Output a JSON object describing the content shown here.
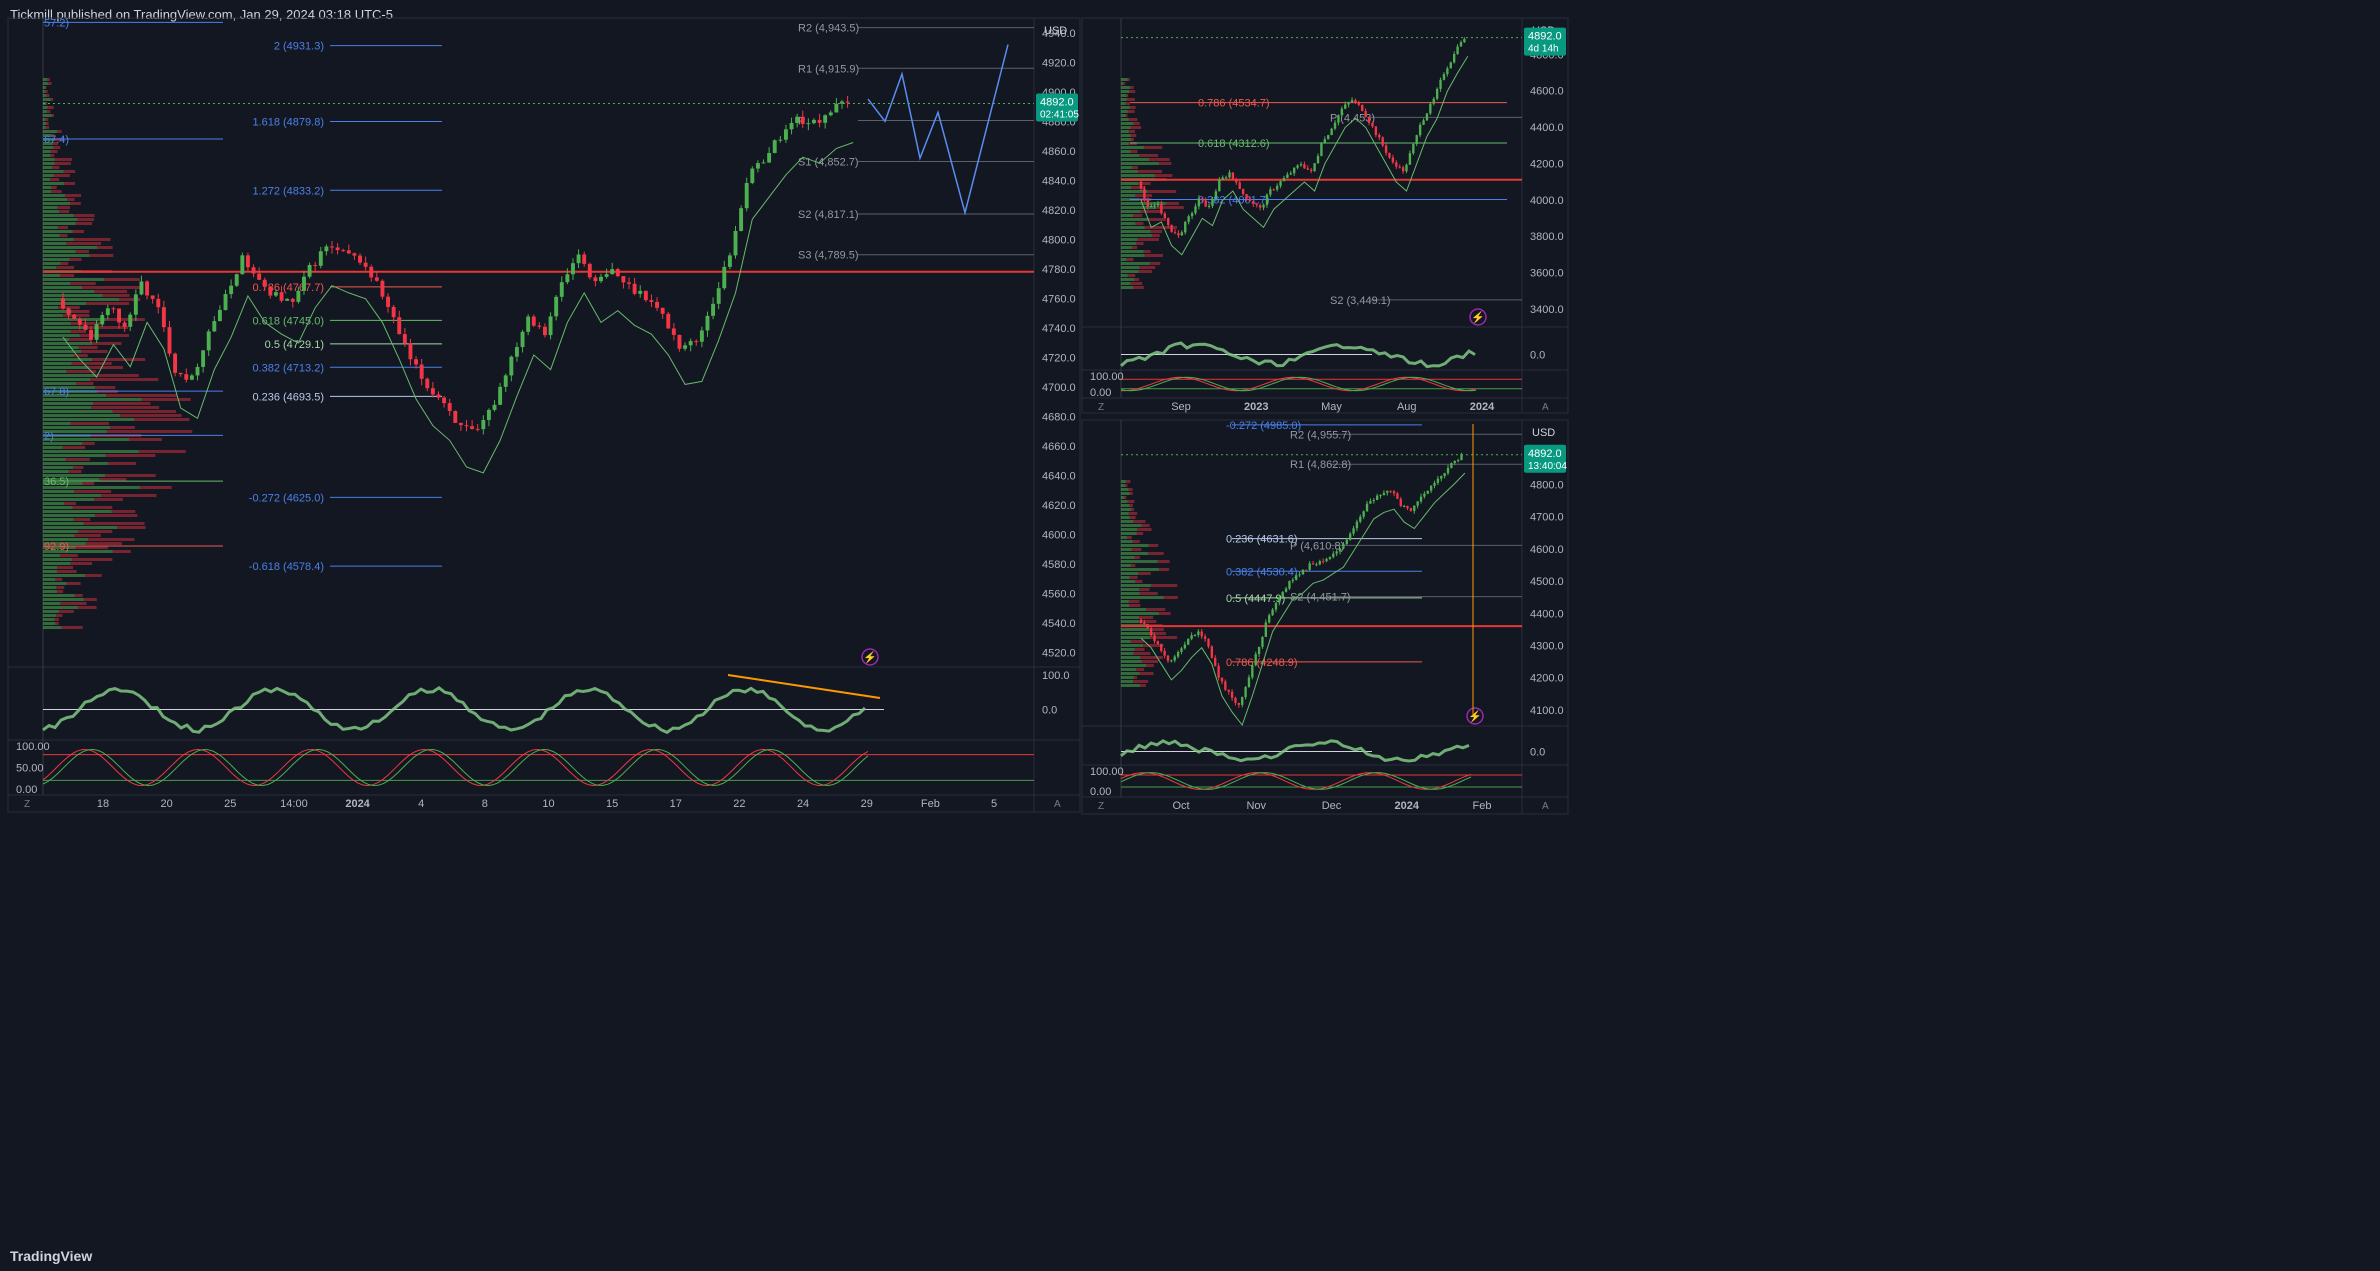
{
  "header": {
    "published": "Tickmill published on TradingView.com, Jan 29, 2024 03:18 UTC-5"
  },
  "footer": {
    "logo": "TradingView"
  },
  "colors": {
    "bg": "#131722",
    "up": "#26a69a",
    "green": "#4caf50",
    "red": "#f23645",
    "blue": "#2962ff",
    "orange": "#ff9800",
    "price_badge": "#089981",
    "purple": "#9c27b0"
  },
  "chart_data": [
    {
      "type": "candlestick",
      "panel": "main",
      "currency": "USD",
      "ylim": [
        4510,
        4950
      ],
      "y_ticks": [
        4520,
        4540,
        4560,
        4580,
        4600,
        4620,
        4640,
        4660,
        4680,
        4700,
        4720,
        4740,
        4760,
        4780,
        4800,
        4820,
        4840,
        4860,
        4880,
        4900,
        4920,
        4940
      ],
      "x_ticks": [
        "18",
        "20",
        "25",
        "14:00",
        "2024",
        "4",
        "8",
        "10",
        "15",
        "17",
        "22",
        "24",
        "29",
        "Feb",
        "5"
      ],
      "current_price": "4892.0",
      "countdown": "02:41:05",
      "fib_levels": [
        {
          "label": "2 (4931.3)",
          "value": 4931.3,
          "color": "blue"
        },
        {
          "label": "1.618 (4879.8)",
          "value": 4879.8,
          "color": "blue"
        },
        {
          "label": "1.272 (4833.2)",
          "value": 4833.2,
          "color": "blue"
        },
        {
          "label": "0.786 (4767.7)",
          "value": 4767.7,
          "color": "red"
        },
        {
          "label": "0.618 (4745.0)",
          "value": 4745.0,
          "color": "green"
        },
        {
          "label": "0.5 (4729.1)",
          "value": 4729.1,
          "color": "lightgreen"
        },
        {
          "label": "0.382 (4713.2)",
          "value": 4713.2,
          "color": "blue"
        },
        {
          "label": "0.236 (4693.5)",
          "value": 4693.5,
          "color": "lightblue"
        },
        {
          "label": "-0.272 (4625.0)",
          "value": 4625.0,
          "color": "blue"
        },
        {
          "label": "-0.618 (4578.4)",
          "value": 4578.4,
          "color": "blue"
        }
      ],
      "left_fib_stubs": [
        {
          "label": "57.2)",
          "value": 4947
        },
        {
          "label": "67.4)",
          "value": 4868
        },
        {
          "label": "67.8)",
          "value": 4697
        },
        {
          "label": "2)",
          "value": 4667
        },
        {
          "label": "36.5)",
          "value": 4636
        },
        {
          "label": "92.9)",
          "value": 4592
        }
      ],
      "pivots": [
        {
          "label": "R2 (4,943.5)",
          "value": 4943.5
        },
        {
          "label": "R1 (4,915.9)",
          "value": 4915.9
        },
        {
          "label": "P",
          "value": 4880.5
        },
        {
          "label": "S1 (4,852.7)",
          "value": 4852.7
        },
        {
          "label": "S2 (4,817.1)",
          "value": 4817.1
        },
        {
          "label": "S3 (4,789.5)",
          "value": 4789.5
        }
      ],
      "sub_panels": {
        "indicator_ticks": [
          "100.0",
          "0.0"
        ],
        "stoch_ticks": [
          "100.00",
          "50.00",
          "0.00"
        ]
      }
    },
    {
      "type": "candlestick",
      "panel": "top-right",
      "currency": "USD",
      "ylim": [
        3300,
        5000
      ],
      "y_ticks": [
        3400,
        3600,
        3800,
        4000,
        4200,
        4400,
        4600,
        4800
      ],
      "x_ticks": [
        "Sep",
        "2023",
        "May",
        "Aug",
        "2024"
      ],
      "current_price": "4892.0",
      "countdown": "4d 14h",
      "fib_levels": [
        {
          "label": "0.786 (4534.7)",
          "value": 4534.7,
          "color": "red"
        },
        {
          "label": "0.618 (4312.6)",
          "value": 4312.6,
          "color": "green"
        },
        {
          "label": "0.382 (4001.7)",
          "value": 4001.7,
          "color": "blue"
        }
      ],
      "pivots": [
        {
          "label": "P (4,453)",
          "value": 4453
        },
        {
          "label": "S2 (3,449.1)",
          "value": 3449.1
        }
      ],
      "sub_panels": {
        "indicator_ticks": [
          "0.0"
        ],
        "stoch_ticks": [
          "100.00",
          "0.00"
        ]
      }
    },
    {
      "type": "candlestick",
      "panel": "bottom-right",
      "currency": "USD",
      "ylim": [
        4050,
        5000
      ],
      "y_ticks": [
        4100,
        4200,
        4300,
        4400,
        4500,
        4600,
        4700,
        4800
      ],
      "x_ticks": [
        "Oct",
        "Nov",
        "Dec",
        "2024",
        "Feb"
      ],
      "current_price": "4892.0",
      "countdown": "13:40:04",
      "fib_levels": [
        {
          "label": "-0.272 (4985.0)",
          "value": 4985.0,
          "color": "blue"
        },
        {
          "label": "0.236 (4631.6)",
          "value": 4631.6,
          "color": "lightblue"
        },
        {
          "label": "0.382 (4530.4)",
          "value": 4530.4,
          "color": "blue"
        },
        {
          "label": "0.5 (4447.9)",
          "value": 4447.9,
          "color": "lightgreen"
        },
        {
          "label": "0.786 (4248.9)",
          "value": 4248.9,
          "color": "red"
        }
      ],
      "pivots": [
        {
          "label": "R2 (4,955.7)",
          "value": 4955.7
        },
        {
          "label": "R1 (4,862.8)",
          "value": 4862.8
        },
        {
          "label": "P (4,610.8)",
          "value": 4610.8
        },
        {
          "label": "S2 (4,451.7)",
          "value": 4451.7
        }
      ],
      "sub_panels": {
        "indicator_ticks": [
          "0.0"
        ],
        "stoch_ticks": [
          "100.00",
          "0.00"
        ]
      }
    }
  ]
}
